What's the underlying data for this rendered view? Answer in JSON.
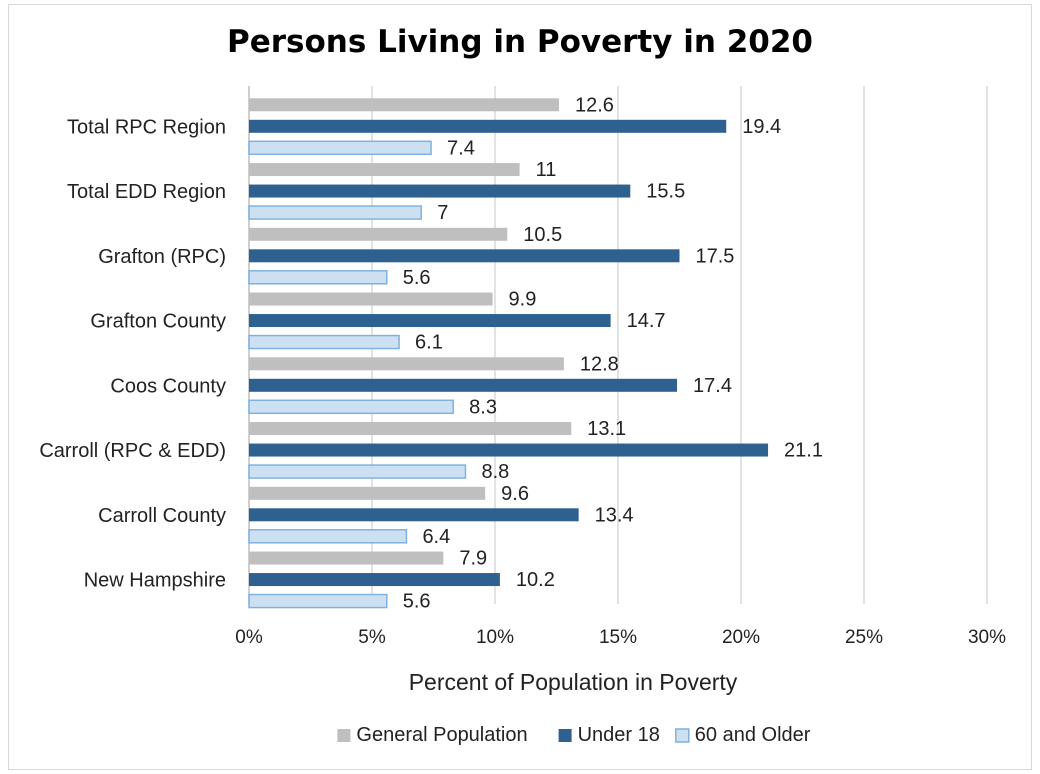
{
  "chart_data": {
    "type": "bar",
    "orientation": "horizontal",
    "title": "Persons Living in Poverty in 2020",
    "xlabel": "Percent of Population in Poverty",
    "ylabel": "",
    "xlim": [
      0,
      30
    ],
    "xticks": [
      "0%",
      "5%",
      "10%",
      "15%",
      "20%",
      "25%",
      "30%"
    ],
    "grid": true,
    "legend_position": "bottom",
    "categories": [
      "Total RPC Region",
      "Total EDD Region",
      "Grafton (RPC)",
      "Grafton County",
      "Coos County",
      "Carroll (RPC & EDD)",
      "Carroll County",
      "New Hampshire"
    ],
    "series": [
      {
        "name": "General Population",
        "color": "#bfbfbf",
        "values": [
          12.6,
          11,
          10.5,
          9.9,
          12.8,
          13.1,
          9.6,
          7.9
        ]
      },
      {
        "name": "Under 18",
        "color": "#2e6190",
        "values": [
          19.4,
          15.5,
          17.5,
          14.7,
          17.4,
          21.1,
          13.4,
          10.2
        ]
      },
      {
        "name": "60 and Older",
        "color": "#cde0f2",
        "border": "#7fb2de",
        "values": [
          7.4,
          7,
          5.6,
          6.1,
          8.3,
          8.8,
          6.4,
          5.6
        ]
      }
    ]
  }
}
